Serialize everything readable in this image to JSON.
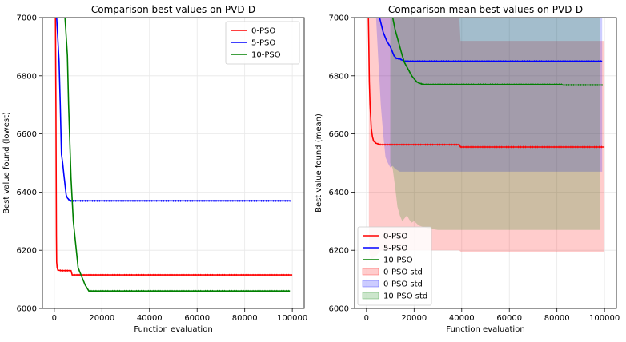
{
  "chart_data": [
    {
      "type": "line",
      "title": "Comparison best values on PVD-D",
      "xlabel": "Function evaluation",
      "ylabel": "Best value found (lowest)",
      "xlim": [
        -5000,
        105000
      ],
      "ylim": [
        6000,
        7000
      ],
      "xticks": [
        0,
        20000,
        40000,
        60000,
        80000,
        100000
      ],
      "xtick_labels": [
        "0",
        "20000",
        "40000",
        "60000",
        "80000",
        "100000"
      ],
      "yticks": [
        6000,
        6200,
        6400,
        6600,
        6800,
        7000
      ],
      "ytick_labels": [
        "6000",
        "6200",
        "6400",
        "6600",
        "6800",
        "7000"
      ],
      "grid": true,
      "legend_position": "top-right",
      "legend": [
        "0-PSO",
        "5-PSO",
        "10-PSO"
      ],
      "series": [
        {
          "name": "0-PSO",
          "color": "#ff0000",
          "x": [
            500,
            700,
            900,
            1000,
            1200,
            1500,
            2000,
            3000,
            4000,
            5000,
            7000,
            7500,
            10000,
            100000
          ],
          "y": [
            7000,
            6690,
            6250,
            6160,
            6140,
            6132,
            6131,
            6130,
            6130,
            6130,
            6130,
            6115,
            6115,
            6115
          ]
        },
        {
          "name": "5-PSO",
          "color": "#0000ff",
          "x": [
            1000,
            2000,
            2500,
            3000,
            3500,
            4000,
            5000,
            5500,
            6000,
            7000,
            8000,
            99000
          ],
          "y": [
            7000,
            6850,
            6700,
            6530,
            6500,
            6460,
            6390,
            6380,
            6375,
            6370,
            6370,
            6370
          ]
        },
        {
          "name": "10-PSO",
          "color": "#008000",
          "x": [
            4500,
            5500,
            6000,
            7000,
            8000,
            9000,
            10000,
            11500,
            13000,
            14500,
            99000
          ],
          "y": [
            7000,
            6870,
            6700,
            6450,
            6300,
            6220,
            6140,
            6110,
            6080,
            6060,
            6060
          ]
        }
      ]
    },
    {
      "type": "line",
      "title": "Comparison mean best values on PVD-D",
      "xlabel": "Function evaluation",
      "ylabel": "Best value found (mean)",
      "xlim": [
        -5000,
        105000
      ],
      "ylim": [
        6000,
        7000
      ],
      "xticks": [
        0,
        20000,
        40000,
        60000,
        80000,
        100000
      ],
      "xtick_labels": [
        "0",
        "20000",
        "40000",
        "60000",
        "80000",
        "100000"
      ],
      "yticks": [
        6000,
        6200,
        6400,
        6600,
        6800,
        7000
      ],
      "ytick_labels": [
        "6000",
        "6200",
        "6400",
        "6600",
        "6800",
        "7000"
      ],
      "grid": true,
      "legend_position": "bottom-left",
      "legend": [
        "0-PSO",
        "5-PSO",
        "10-PSO",
        "0-PSO std",
        "0-PSO std",
        "10-PSO std"
      ],
      "series": [
        {
          "name": "0-PSO",
          "color": "#ff0000",
          "x": [
            800,
            1000,
            1200,
            1500,
            2000,
            2500,
            3000,
            4000,
            5000,
            6000,
            39000,
            39500,
            100000
          ],
          "y": [
            7000,
            6900,
            6780,
            6700,
            6620,
            6590,
            6575,
            6568,
            6565,
            6563,
            6563,
            6555,
            6555
          ]
        },
        {
          "name": "5-PSO",
          "color": "#0000ff",
          "x": [
            5500,
            7000,
            8500,
            10000,
            11500,
            12500,
            14000,
            16000,
            20000,
            99000
          ],
          "y": [
            7000,
            6950,
            6920,
            6900,
            6870,
            6860,
            6858,
            6850,
            6850,
            6850
          ]
        },
        {
          "name": "10-PSO",
          "color": "#008000",
          "x": [
            11000,
            12000,
            13000,
            14000,
            15000,
            16000,
            17000,
            18000,
            19000,
            20000,
            21000,
            22000,
            24000,
            82000,
            82500,
            99000
          ],
          "y": [
            7000,
            6960,
            6930,
            6900,
            6870,
            6845,
            6830,
            6815,
            6800,
            6790,
            6780,
            6775,
            6770,
            6770,
            6768,
            6768
          ]
        }
      ],
      "bands": [
        {
          "name": "0-PSO std",
          "color": "#ff0000",
          "opacity": 0.2,
          "x": [
            1000,
            1200,
            1500,
            2000,
            3000,
            4000,
            6000,
            9000,
            10000,
            39000,
            39500,
            100000
          ],
          "lower": [
            6300,
            6200,
            6180,
            6170,
            6175,
            6180,
            6200,
            6200,
            6200,
            6200,
            6195,
            6195
          ],
          "upper": [
            7000,
            7000,
            7000,
            7000,
            7000,
            7000,
            7000,
            7000,
            7000,
            7000,
            6920,
            6920
          ]
        },
        {
          "name": "0-PSO std",
          "color": "#0000ff",
          "opacity": 0.2,
          "x": [
            4000,
            5000,
            6000,
            7000,
            8000,
            9000,
            10000,
            11000,
            12000,
            14000,
            99000
          ],
          "lower": [
            7000,
            6850,
            6700,
            6600,
            6520,
            6500,
            6485,
            6490,
            6480,
            6470,
            6470
          ],
          "upper": [
            7000,
            7000,
            7000,
            7000,
            7000,
            7000,
            7000,
            7000,
            7000,
            7000,
            7000
          ]
        },
        {
          "name": "10-PSO std",
          "color": "#008000",
          "opacity": 0.2,
          "x": [
            10000,
            11000,
            12000,
            13000,
            14000,
            15000,
            16000,
            17000,
            18000,
            19000,
            20000,
            22000,
            24000,
            26000,
            30000,
            98000
          ],
          "lower": [
            6500,
            6480,
            6420,
            6350,
            6320,
            6300,
            6310,
            6320,
            6305,
            6295,
            6300,
            6285,
            6280,
            6275,
            6270,
            6270
          ],
          "upper": [
            7000,
            7000,
            7000,
            7000,
            7000,
            7000,
            7000,
            7000,
            7000,
            7000,
            7000,
            7000,
            7000,
            7000,
            7000,
            7000
          ]
        }
      ]
    }
  ]
}
